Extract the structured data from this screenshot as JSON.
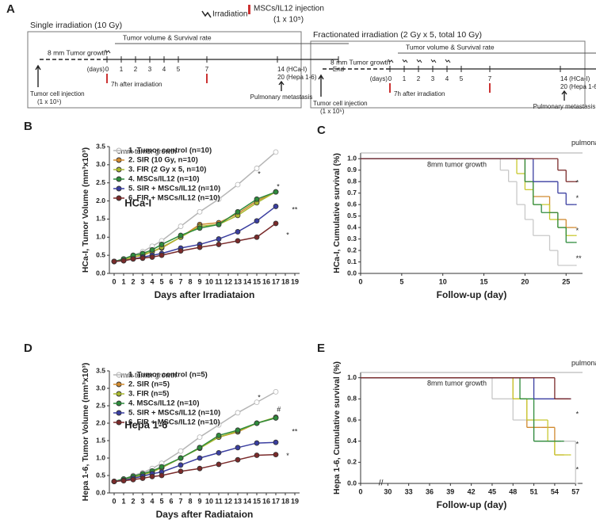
{
  "panel_a": {
    "label": "A",
    "legend": {
      "irradiation": "Irradiation",
      "injection": "MSCs/IL12 injection",
      "injection_dose": "(1 x 10⁵)"
    },
    "left": {
      "title": "Single irradiation (10 Gy)",
      "growth": "8 mm Tumor growth",
      "measure": "Tumor volume & Survival rate",
      "days_unit": "(days)",
      "days": [
        "0",
        "1",
        "2",
        "3",
        "4",
        "5",
        "7",
        "14 (HCa-I)",
        "End"
      ],
      "days_note": "20 (Hepa 1-6)",
      "cell": "Tumor cell injection",
      "cell_dose": "(1 x 10⁵)",
      "after": "7h after irradiation",
      "metastasis": "Pulmonary metastasis"
    },
    "right": {
      "title": "Fractionated irradiation (2 Gy x 5, total 10 Gy)",
      "growth": "8 mm Tumor growth",
      "measure": "Tumor volume & Survival rate",
      "days_unit": "(days)",
      "days": [
        "0",
        "1",
        "2",
        "3",
        "4",
        "5",
        "7",
        "14 (HCa-I)",
        "End"
      ],
      "days_note": "20 (Hepa 1-6)",
      "cell": "Tumor cell injection",
      "cell_dose": "(1 x 10⁵)",
      "after": "7h after irradiation",
      "metastasis": "Pulmonary metastasis"
    }
  },
  "chart_data": [
    {
      "type": "line",
      "label": "B",
      "xlabel": "Days after Irradiataion",
      "ylabel": "HCa-I, Tumor Volume (mm³x10³)",
      "annotations": [
        "HCa-I",
        "8mm tumor growth",
        "*",
        "**",
        "*",
        "*"
      ],
      "legend": "top-left",
      "x": [
        0,
        1,
        2,
        3,
        4,
        5,
        7,
        9,
        11,
        13,
        15,
        17
      ],
      "xlim": [
        -0.5,
        19.5
      ],
      "xticks": [
        0,
        1,
        2,
        3,
        4,
        5,
        6,
        7,
        8,
        9,
        10,
        11,
        12,
        13,
        14,
        15,
        16,
        17,
        18,
        19
      ],
      "ylim": [
        0,
        3.5
      ],
      "yticks": [
        {
          "value": 0,
          "label": "0.0"
        },
        0.5,
        {
          "value": 1,
          "label": "1.0"
        },
        1.5,
        {
          "value": 2,
          "label": "2.0"
        },
        2.5,
        {
          "value": 3,
          "label": "3.0"
        },
        3.5
      ],
      "series": [
        {
          "name": "1. Tumor control (n=10)",
          "color": "#b5b5b5",
          "values": [
            0.33,
            0.4,
            0.5,
            0.6,
            0.75,
            0.9,
            1.3,
            1.7,
            2.05,
            2.45,
            2.9,
            3.35
          ]
        },
        {
          "name": "2. SIR (10 Gy, n=10)",
          "color": "#d08a30",
          "values": [
            0.33,
            0.38,
            0.45,
            0.5,
            0.6,
            0.7,
            1.0,
            1.35,
            1.4,
            1.65,
            2.0,
            2.25
          ]
        },
        {
          "name": "3. FIR (2 Gy x 5, n=10)",
          "color": "#a8b830",
          "values": [
            0.33,
            0.37,
            0.45,
            0.52,
            0.6,
            0.72,
            1.0,
            1.3,
            1.35,
            1.6,
            1.95,
            2.25
          ]
        },
        {
          "name": "4. MSCs/IL12 (n=10)",
          "color": "#2e8b3c",
          "values": [
            0.33,
            0.4,
            0.5,
            0.55,
            0.65,
            0.8,
            1.05,
            1.25,
            1.35,
            1.7,
            2.05,
            2.25
          ]
        },
        {
          "name": "5. SIR + MSCs/IL12 (n=10)",
          "color": "#3a3ea0",
          "values": [
            0.33,
            0.35,
            0.4,
            0.45,
            0.5,
            0.55,
            0.7,
            0.8,
            0.95,
            1.15,
            1.45,
            1.85
          ]
        },
        {
          "name": "6. FIR + MSCs/IL12 (n=10)",
          "color": "#7a2a2a",
          "values": [
            0.33,
            0.35,
            0.4,
            0.42,
            0.45,
            0.5,
            0.62,
            0.72,
            0.8,
            0.9,
            1.0,
            1.38
          ]
        }
      ]
    },
    {
      "type": "step",
      "label": "C",
      "xlabel": "Follow-up (day)",
      "ylabel": "HCa-I, Cumulative survival (%)",
      "annotations": [
        "8mm tumor growth",
        "pulmonary metastasis",
        "**",
        "*",
        "*",
        "*"
      ],
      "xlim": [
        0,
        27
      ],
      "xticks": [
        0,
        5,
        10,
        15,
        20,
        25
      ],
      "ylim": [
        0,
        1.05
      ],
      "yticks": [
        {
          "value": 0,
          "label": "0.0"
        },
        0.1,
        0.2,
        0.3,
        0.4,
        0.5,
        0.6,
        0.7,
        0.8,
        0.9,
        {
          "value": 1,
          "label": "1.0"
        }
      ],
      "series": [
        {
          "color": "#c8c8c8",
          "x": [
            0,
            17,
            18,
            19,
            20,
            21,
            23,
            24,
            26
          ],
          "values": [
            1,
            0.9,
            0.8,
            0.6,
            0.47,
            0.33,
            0.2,
            0.07,
            0.07
          ]
        },
        {
          "color": "#d08a30",
          "x": [
            0,
            20,
            21,
            23,
            24,
            25,
            26
          ],
          "values": [
            1,
            0.8,
            0.67,
            0.53,
            0.47,
            0.4,
            0.4
          ]
        },
        {
          "color": "#c8c830",
          "x": [
            0,
            19,
            20,
            21,
            23,
            24,
            25,
            26
          ],
          "values": [
            1,
            0.87,
            0.73,
            0.6,
            0.47,
            0.4,
            0.33,
            0.33
          ]
        },
        {
          "color": "#2e8b3c",
          "x": [
            0,
            20,
            21,
            22,
            24,
            25,
            26
          ],
          "values": [
            1,
            0.8,
            0.6,
            0.53,
            0.4,
            0.27,
            0.27
          ]
        },
        {
          "color": "#3a3ea0",
          "x": [
            0,
            21,
            24,
            25,
            26
          ],
          "values": [
            1,
            0.8,
            0.7,
            0.6,
            0.6
          ]
        },
        {
          "color": "#7a2a2a",
          "x": [
            0,
            24,
            25,
            26
          ],
          "values": [
            1,
            0.9,
            0.8,
            0.8
          ]
        }
      ]
    },
    {
      "type": "line",
      "label": "D",
      "xlabel": "Days after Radiataion",
      "ylabel": "Hepa 1-6, Tumor Volume (mm³x10³)",
      "annotations": [
        "Hepa 1-6",
        "8mm tumor growth",
        "*",
        "**",
        "*",
        "#"
      ],
      "legend": "top-left",
      "x": [
        0,
        1,
        2,
        3,
        4,
        5,
        7,
        9,
        11,
        13,
        15,
        17
      ],
      "xlim": [
        -0.5,
        19.5
      ],
      "xticks": [
        0,
        1,
        2,
        3,
        4,
        5,
        6,
        7,
        8,
        9,
        10,
        11,
        12,
        13,
        14,
        15,
        16,
        17,
        18,
        19
      ],
      "ylim": [
        0,
        3.5
      ],
      "yticks": [
        {
          "value": 0,
          "label": "0.0"
        },
        0.5,
        {
          "value": 1,
          "label": "1.0"
        },
        1.5,
        {
          "value": 2,
          "label": "2.0"
        },
        2.5,
        {
          "value": 3,
          "label": "3.0"
        },
        3.5
      ],
      "series": [
        {
          "name": "1. Tumor control (n=5)",
          "color": "#b5b5b5",
          "values": [
            0.33,
            0.4,
            0.5,
            0.58,
            0.7,
            0.85,
            1.2,
            1.6,
            1.95,
            2.3,
            2.6,
            2.9
          ]
        },
        {
          "name": "2. SIR (n=5)",
          "color": "#d08a30",
          "values": [
            0.33,
            0.38,
            0.45,
            0.52,
            0.62,
            0.72,
            1.0,
            1.3,
            1.6,
            1.75,
            2.0,
            2.15
          ]
        },
        {
          "name": "3. FIR (n=5)",
          "color": "#a8b830",
          "values": [
            0.33,
            0.37,
            0.44,
            0.52,
            0.6,
            0.72,
            1.0,
            1.28,
            1.6,
            1.77,
            2.0,
            2.17
          ]
        },
        {
          "name": "4. MSCs/IL12 (n=10)",
          "color": "#2e8b3c",
          "values": [
            0.33,
            0.4,
            0.48,
            0.55,
            0.63,
            0.75,
            1.0,
            1.3,
            1.65,
            1.8,
            2.0,
            2.15
          ]
        },
        {
          "name": "5. SIR + MSCs/IL12 (n=10)",
          "color": "#3a3ea0",
          "values": [
            0.33,
            0.36,
            0.42,
            0.48,
            0.55,
            0.6,
            0.8,
            1.0,
            1.15,
            1.3,
            1.43,
            1.45
          ]
        },
        {
          "name": "6. FIR + MSCs/IL12 (n=10)",
          "color": "#7a2a2a",
          "values": [
            0.33,
            0.35,
            0.38,
            0.42,
            0.47,
            0.5,
            0.62,
            0.7,
            0.82,
            0.95,
            1.08,
            1.1
          ]
        }
      ]
    },
    {
      "type": "step",
      "label": "E",
      "xlabel": "Follow-up (day)",
      "ylabel": "Hepa 1-6, Cumulative survival (%)",
      "annotations": [
        "8mm tumor growth",
        "pulmonary metastasis",
        "*",
        "*",
        "*"
      ],
      "xlim": [
        0,
        58
      ],
      "x_break": [
        3,
        28
      ],
      "xticks": [
        0,
        30,
        33,
        36,
        39,
        42,
        45,
        48,
        51,
        54,
        57
      ],
      "ylim": [
        0,
        1.05
      ],
      "yticks": [
        {
          "value": 0,
          "label": "0.0"
        },
        0.2,
        0.4,
        0.6,
        0.8,
        {
          "value": 1,
          "label": "1.0"
        }
      ],
      "series": [
        {
          "color": "#c8c8c8",
          "x": [
            0,
            45,
            48,
            51,
            54,
            57
          ],
          "values": [
            1,
            0.8,
            0.6,
            0.4,
            0.4,
            0
          ]
        },
        {
          "color": "#d08a30",
          "x": [
            0,
            48,
            50,
            52,
            54,
            55
          ],
          "values": [
            1,
            0.8,
            0.53,
            0.53,
            0.27,
            0.27
          ]
        },
        {
          "color": "#c8c830",
          "x": [
            0,
            48,
            50,
            53,
            54,
            56
          ],
          "values": [
            1,
            0.8,
            0.6,
            0.4,
            0.27,
            0.27
          ]
        },
        {
          "color": "#2e8b3c",
          "x": [
            0,
            49,
            51,
            55
          ],
          "values": [
            1,
            0.8,
            0.4,
            0.4
          ]
        },
        {
          "color": "#3a3ea0",
          "x": [
            0,
            51,
            56
          ],
          "values": [
            1,
            0.8,
            0.8
          ]
        },
        {
          "color": "#7a2a2a",
          "x": [
            0,
            54,
            56
          ],
          "values": [
            1,
            0.8,
            0.8
          ]
        }
      ]
    }
  ]
}
